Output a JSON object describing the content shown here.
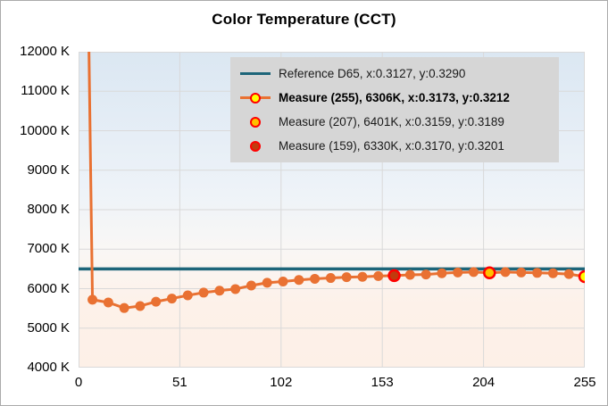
{
  "title": "Color Temperature (CCT)",
  "legend": {
    "items": [
      {
        "label": "Reference D65, x:0.3127, y:0.3290",
        "type": "line",
        "line_color": "#1d6579",
        "bold": false
      },
      {
        "label": "Measure (255), 6306K, x:0.3173, y:0.3212",
        "type": "line-marker",
        "line_color": "#e97132",
        "fill": "#ffff00",
        "stroke": "#ff0000",
        "bold": true
      },
      {
        "label": "Measure (207), 6401K, x:0.3159, y:0.3189",
        "type": "marker",
        "fill": "#ffc000",
        "stroke": "#ff0000",
        "bold": false
      },
      {
        "label": "Measure (159), 6330K, x:0.3170, y:0.3201",
        "type": "marker",
        "fill": "#c13b0d",
        "stroke": "#ff0000",
        "bold": false
      }
    ]
  },
  "colors": {
    "measure_line": "#e97132",
    "reference_line": "#1d6579",
    "grid": "#d9d9d9",
    "legend_background": "#d6d6d6",
    "highlight_stroke": "#ff0000"
  },
  "chart_data": {
    "type": "line",
    "title": "Color Temperature (CCT)",
    "xlabel": "",
    "ylabel": "",
    "xlim": [
      0,
      255
    ],
    "ylim": [
      4000,
      12000
    ],
    "grid": true,
    "legend_position": "top-right-inside",
    "x_ticks": [
      {
        "value": 0,
        "label": "0"
      },
      {
        "value": 51,
        "label": "51"
      },
      {
        "value": 102,
        "label": "102"
      },
      {
        "value": 153,
        "label": "153"
      },
      {
        "value": 204,
        "label": "204"
      },
      {
        "value": 255,
        "label": "255"
      }
    ],
    "y_ticks": [
      {
        "value": 12000,
        "label": "12000 K"
      },
      {
        "value": 11000,
        "label": "11000 K"
      },
      {
        "value": 10000,
        "label": "10000 K"
      },
      {
        "value": 9000,
        "label": "9000 K"
      },
      {
        "value": 8000,
        "label": "8000 K"
      },
      {
        "value": 7000,
        "label": "7000 K"
      },
      {
        "value": 6000,
        "label": "6000 K"
      },
      {
        "value": 5000,
        "label": "5000 K"
      },
      {
        "value": 4000,
        "label": "4000 K"
      }
    ],
    "reference_line": {
      "name": "Reference D65",
      "value": 6500,
      "color": "#1d6579",
      "cie_x": 0.3127,
      "cie_y": 0.329
    },
    "series": [
      {
        "name": "Measure",
        "color": "#e97132",
        "points": [
          [
            3,
            20000
          ],
          [
            7,
            5720
          ],
          [
            15,
            5650
          ],
          [
            23,
            5510
          ],
          [
            31,
            5560
          ],
          [
            39,
            5670
          ],
          [
            47,
            5750
          ],
          [
            55,
            5830
          ],
          [
            63,
            5900
          ],
          [
            71,
            5950
          ],
          [
            79,
            5990
          ],
          [
            87,
            6080
          ],
          [
            95,
            6150
          ],
          [
            103,
            6180
          ],
          [
            111,
            6220
          ],
          [
            119,
            6250
          ],
          [
            127,
            6270
          ],
          [
            135,
            6290
          ],
          [
            143,
            6300
          ],
          [
            151,
            6320
          ],
          [
            159,
            6330
          ],
          [
            167,
            6350
          ],
          [
            175,
            6360
          ],
          [
            183,
            6390
          ],
          [
            191,
            6410
          ],
          [
            199,
            6420
          ],
          [
            207,
            6401
          ],
          [
            215,
            6420
          ],
          [
            223,
            6410
          ],
          [
            231,
            6400
          ],
          [
            239,
            6390
          ],
          [
            247,
            6370
          ],
          [
            255,
            6306
          ]
        ]
      }
    ],
    "highlight_points": [
      {
        "name": "Measure (159)",
        "cct": "6330K",
        "cie_x": 0.317,
        "cie_y": 0.3201,
        "x": 159,
        "value": 6330,
        "fill": "#c13b0d",
        "stroke": "#ff0000"
      },
      {
        "name": "Measure (207)",
        "cct": "6401K",
        "cie_x": 0.3159,
        "cie_y": 0.3189,
        "x": 207,
        "value": 6401,
        "fill": "#ffc000",
        "stroke": "#ff0000"
      },
      {
        "name": "Measure (255)",
        "cct": "6306K",
        "cie_x": 0.3173,
        "cie_y": 0.3212,
        "x": 255,
        "value": 6306,
        "fill": "#ffff00",
        "stroke": "#ff0000"
      }
    ]
  }
}
